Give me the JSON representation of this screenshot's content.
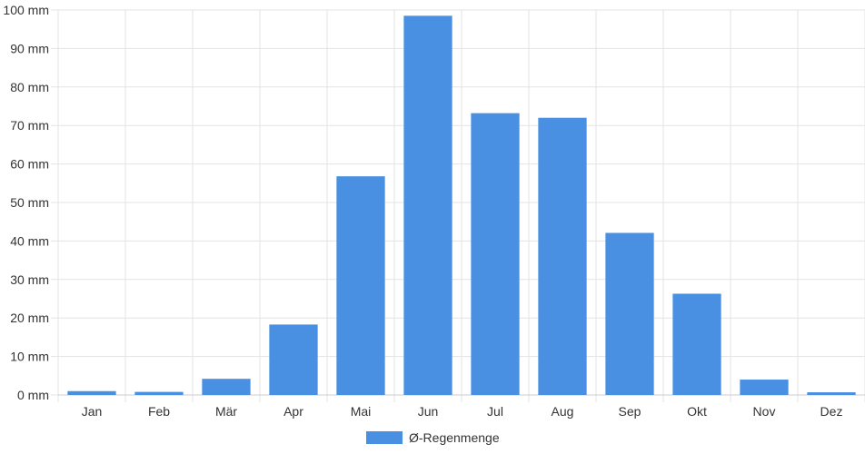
{
  "chart_data": {
    "type": "bar",
    "categories": [
      "Jan",
      "Feb",
      "Mär",
      "Apr",
      "Mai",
      "Jun",
      "Jul",
      "Aug",
      "Sep",
      "Okt",
      "Nov",
      "Dez"
    ],
    "series": [
      {
        "name": "Ø-Regenmenge",
        "values": [
          1,
          0.8,
          4.2,
          18.3,
          56.8,
          98.5,
          73.2,
          72.0,
          42.1,
          26.3,
          4.0,
          0.7
        ],
        "color": "#4a90e2"
      }
    ],
    "y_ticks": [
      "0 mm",
      "10 mm",
      "20 mm",
      "30 mm",
      "40 mm",
      "50 mm",
      "60 mm",
      "70 mm",
      "80 mm",
      "90 mm",
      "100 mm"
    ],
    "ylim": [
      0,
      100
    ],
    "grid": true,
    "legend_position": "bottom"
  }
}
